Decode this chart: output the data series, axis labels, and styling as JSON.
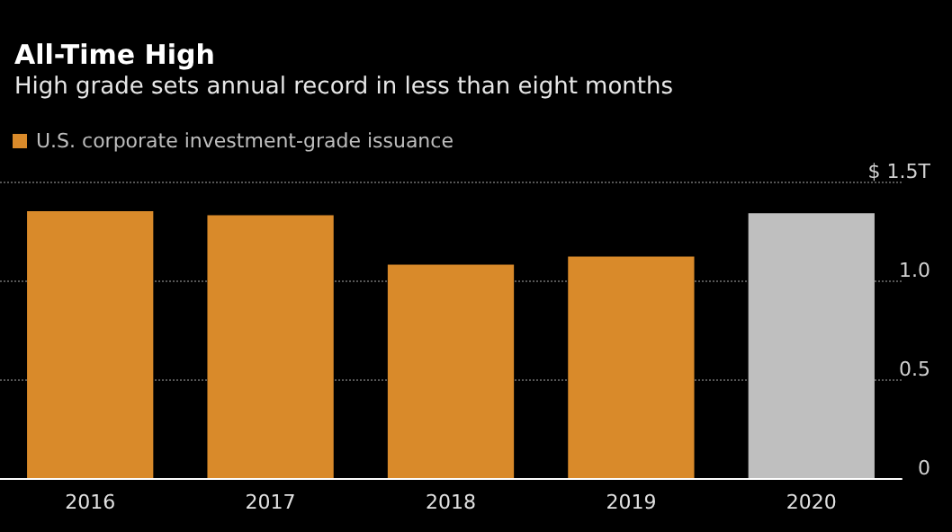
{
  "chart_data": {
    "type": "bar",
    "title": "All-Time High",
    "subtitle": "High grade sets annual record in less than eight months",
    "categories": [
      "2016",
      "2017",
      "2018",
      "2019",
      "2020"
    ],
    "series": [
      {
        "name": "U.S. corporate investment-grade issuance",
        "color": "#d98a2a",
        "values": [
          1.35,
          1.33,
          1.08,
          1.12,
          1.34
        ],
        "colors": [
          "#d98a2a",
          "#d98a2a",
          "#d98a2a",
          "#d98a2a",
          "#bfbfbf"
        ]
      }
    ],
    "ylim": [
      0,
      1.5
    ],
    "yticks": [
      0,
      0.5,
      {
        "value": 1,
        "label": "1.0"
      },
      {
        "value": 1.5,
        "label": "$ 1.5T"
      }
    ],
    "grid": "y",
    "legend": "top left"
  }
}
